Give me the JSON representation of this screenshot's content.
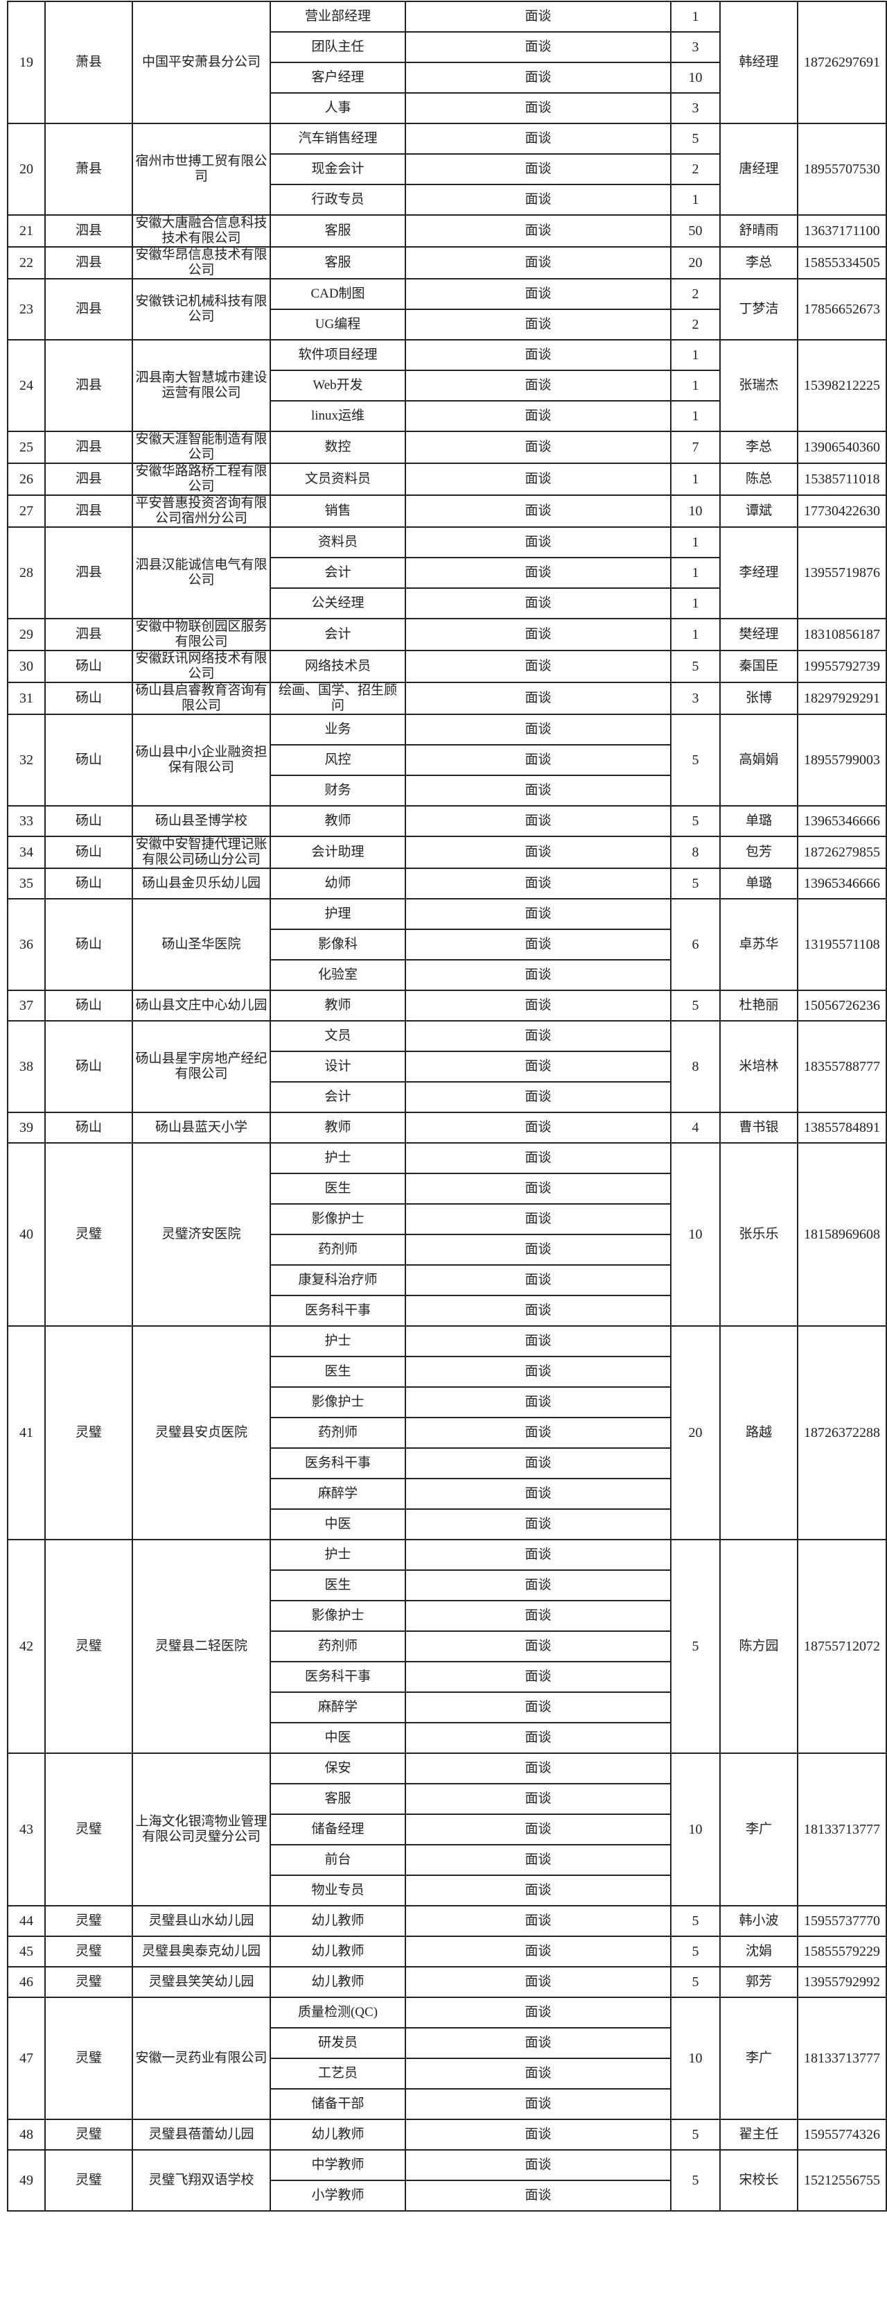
{
  "rows": [
    {
      "no": "19",
      "county": "萧县",
      "company": "中国平安萧县分公司",
      "positions": [
        {
          "title": "营业部经理",
          "method": "面谈",
          "count": "1"
        },
        {
          "title": "团队主任",
          "method": "面谈",
          "count": "3"
        },
        {
          "title": "客户经理",
          "method": "面谈",
          "count": "10"
        },
        {
          "title": "人事",
          "method": "面谈",
          "count": "3"
        }
      ],
      "contact": "韩经理",
      "phone": "18726297691"
    },
    {
      "no": "20",
      "county": "萧县",
      "company": "宿州市世搏工贸有限公司",
      "positions": [
        {
          "title": "汽车销售经理",
          "method": "面谈",
          "count": "5"
        },
        {
          "title": "现金会计",
          "method": "面谈",
          "count": "2"
        },
        {
          "title": "行政专员",
          "method": "面谈",
          "count": "1"
        }
      ],
      "contact": "唐经理",
      "phone": "18955707530"
    },
    {
      "no": "21",
      "county": "泗县",
      "company": "安徽大唐融合信息科技技术有限公司",
      "positions": [
        {
          "title": "客服",
          "method": "面谈"
        }
      ],
      "count": "50",
      "contact": "舒晴雨",
      "phone": "13637171100"
    },
    {
      "no": "22",
      "county": "泗县",
      "company": "安徽华昂信息技术有限公司",
      "positions": [
        {
          "title": "客服",
          "method": "面谈"
        }
      ],
      "count": "20",
      "contact": "李总",
      "phone": "15855334505"
    },
    {
      "no": "23",
      "county": "泗县",
      "company": "安徽铁记机械科技有限公司",
      "positions": [
        {
          "title": "CAD制图",
          "method": "面谈",
          "count": "2"
        },
        {
          "title": "UG编程",
          "method": "面谈",
          "count": "2"
        }
      ],
      "contact": "丁梦洁",
      "phone": "17856652673"
    },
    {
      "no": "24",
      "county": "泗县",
      "company": "泗县南大智慧城市建设运营有限公司",
      "positions": [
        {
          "title": "软件项目经理",
          "method": "面谈",
          "count": "1"
        },
        {
          "title": "Web开发",
          "method": "面谈",
          "count": "1"
        },
        {
          "title": "linux运维",
          "method": "面谈",
          "count": "1"
        }
      ],
      "contact": "张瑞杰",
      "phone": "15398212225"
    },
    {
      "no": "25",
      "county": "泗县",
      "company": "安徽天涯智能制造有限公司",
      "positions": [
        {
          "title": "数控",
          "method": "面谈"
        }
      ],
      "count": "7",
      "contact": "李总",
      "phone": "13906540360"
    },
    {
      "no": "26",
      "county": "泗县",
      "company": "安徽华路路桥工程有限公司",
      "positions": [
        {
          "title": "文员资料员",
          "method": "面谈"
        }
      ],
      "count": "1",
      "contact": "陈总",
      "phone": "15385711018"
    },
    {
      "no": "27",
      "county": "泗县",
      "company": "平安普惠投资咨询有限公司宿州分公司",
      "positions": [
        {
          "title": "销售",
          "method": "面谈"
        }
      ],
      "count": "10",
      "contact": "谭斌",
      "phone": "17730422630"
    },
    {
      "no": "28",
      "county": "泗县",
      "company": "泗县汉能诚信电气有限公司",
      "positions": [
        {
          "title": "资料员",
          "method": "面谈",
          "count": "1"
        },
        {
          "title": "会计",
          "method": "面谈",
          "count": "1"
        },
        {
          "title": "公关经理",
          "method": "面谈",
          "count": "1"
        }
      ],
      "contact": "李经理",
      "phone": "13955719876"
    },
    {
      "no": "29",
      "county": "泗县",
      "company": "安徽中物联创园区服务有限公司",
      "positions": [
        {
          "title": "会计",
          "method": "面谈"
        }
      ],
      "count": "1",
      "contact": "樊经理",
      "phone": "18310856187"
    },
    {
      "no": "30",
      "county": "砀山",
      "company": "安徽跃讯网络技术有限公司",
      "positions": [
        {
          "title": "网络技术员",
          "method": "面谈"
        }
      ],
      "count": "5",
      "contact": "秦国臣",
      "phone": "19955792739"
    },
    {
      "no": "31",
      "county": "砀山",
      "company": "砀山县启睿教育咨询有限公司",
      "positions": [
        {
          "title": "绘画、国学、招生顾问",
          "method": "面谈"
        }
      ],
      "count": "3",
      "contact": "张博",
      "phone": "18297929291"
    },
    {
      "no": "32",
      "county": "砀山",
      "company": "砀山县中小企业融资担保有限公司",
      "positions": [
        {
          "title": "业务",
          "method": "面谈"
        },
        {
          "title": "风控",
          "method": "面谈"
        },
        {
          "title": "财务",
          "method": "面谈"
        }
      ],
      "count": "5",
      "contact": "高娟娟",
      "phone": "18955799003"
    },
    {
      "no": "33",
      "county": "砀山",
      "company": "砀山县圣博学校",
      "positions": [
        {
          "title": "教师",
          "method": "面谈"
        }
      ],
      "count": "5",
      "contact": "单璐",
      "phone": "13965346666"
    },
    {
      "no": "34",
      "county": "砀山",
      "company": "安徽中安智捷代理记账有限公司砀山分公司",
      "positions": [
        {
          "title": "会计助理",
          "method": "面谈"
        }
      ],
      "count": "8",
      "contact": "包芳",
      "phone": "18726279855"
    },
    {
      "no": "35",
      "county": "砀山",
      "company": "砀山县金贝乐幼儿园",
      "positions": [
        {
          "title": "幼师",
          "method": "面谈"
        }
      ],
      "count": "5",
      "contact": "单璐",
      "phone": "13965346666"
    },
    {
      "no": "36",
      "county": "砀山",
      "company": "砀山圣华医院",
      "positions": [
        {
          "title": "护理",
          "method": "面谈"
        },
        {
          "title": "影像科",
          "method": "面谈"
        },
        {
          "title": "化验室",
          "method": "面谈"
        }
      ],
      "count": "6",
      "contact": "卓苏华",
      "phone": "13195571108"
    },
    {
      "no": "37",
      "county": "砀山",
      "company": "砀山县文庄中心幼儿园",
      "positions": [
        {
          "title": "教师",
          "method": "面谈"
        }
      ],
      "count": "5",
      "contact": "杜艳丽",
      "phone": "15056726236"
    },
    {
      "no": "38",
      "county": "砀山",
      "company": "砀山县星宇房地产经纪有限公司",
      "positions": [
        {
          "title": "文员",
          "method": "面谈"
        },
        {
          "title": "设计",
          "method": "面谈"
        },
        {
          "title": "会计",
          "method": "面谈"
        }
      ],
      "count": "8",
      "contact": "米培林",
      "phone": "18355788777"
    },
    {
      "no": "39",
      "county": "砀山",
      "company": "砀山县蓝天小学",
      "positions": [
        {
          "title": "教师",
          "method": "面谈"
        }
      ],
      "count": "4",
      "contact": "曹书银",
      "phone": "13855784891"
    },
    {
      "no": "40",
      "county": "灵璧",
      "company": "灵璧济安医院",
      "positions": [
        {
          "title": "护士",
          "method": "面谈"
        },
        {
          "title": "医生",
          "method": "面谈"
        },
        {
          "title": "影像护士",
          "method": "面谈"
        },
        {
          "title": "药剂师",
          "method": "面谈"
        },
        {
          "title": "康复科治疗师",
          "method": "面谈"
        },
        {
          "title": "医务科干事",
          "method": "面谈"
        }
      ],
      "count": "10",
      "contact": "张乐乐",
      "phone": "18158969608"
    },
    {
      "no": "41",
      "county": "灵璧",
      "company": "灵璧县安贞医院",
      "positions": [
        {
          "title": "护士",
          "method": "面谈"
        },
        {
          "title": "医生",
          "method": "面谈"
        },
        {
          "title": "影像护士",
          "method": "面谈"
        },
        {
          "title": "药剂师",
          "method": "面谈"
        },
        {
          "title": "医务科干事",
          "method": "面谈"
        },
        {
          "title": "麻醉学",
          "method": "面谈"
        },
        {
          "title": "中医",
          "method": "面谈"
        }
      ],
      "count": "20",
      "contact": "路越",
      "phone": "18726372288"
    },
    {
      "no": "42",
      "county": "灵璧",
      "company": "灵璧县二轻医院",
      "positions": [
        {
          "title": "护士",
          "method": "面谈"
        },
        {
          "title": "医生",
          "method": "面谈"
        },
        {
          "title": "影像护士",
          "method": "面谈"
        },
        {
          "title": "药剂师",
          "method": "面谈"
        },
        {
          "title": "医务科干事",
          "method": "面谈"
        },
        {
          "title": "麻醉学",
          "method": "面谈"
        },
        {
          "title": "中医",
          "method": "面谈"
        }
      ],
      "count": "5",
      "contact": "陈方园",
      "phone": "18755712072"
    },
    {
      "no": "43",
      "county": "灵璧",
      "company": "上海文化银湾物业管理有限公司灵璧分公司",
      "positions": [
        {
          "title": "保安",
          "method": "面谈"
        },
        {
          "title": "客服",
          "method": "面谈"
        },
        {
          "title": "储备经理",
          "method": "面谈"
        },
        {
          "title": "前台",
          "method": "面谈"
        },
        {
          "title": "物业专员",
          "method": "面谈"
        }
      ],
      "count": "10",
      "contact": "李广",
      "phone": "18133713777"
    },
    {
      "no": "44",
      "county": "灵璧",
      "company": "灵璧县山水幼儿园",
      "positions": [
        {
          "title": "幼儿教师",
          "method": "面谈"
        }
      ],
      "count": "5",
      "contact": "韩小波",
      "phone": "15955737770"
    },
    {
      "no": "45",
      "county": "灵璧",
      "company": "灵璧县奥泰克幼儿园",
      "positions": [
        {
          "title": "幼儿教师",
          "method": "面谈"
        }
      ],
      "count": "5",
      "contact": "沈娟",
      "phone": "15855579229"
    },
    {
      "no": "46",
      "county": "灵璧",
      "company": "灵璧县笑笑幼儿园",
      "positions": [
        {
          "title": "幼儿教师",
          "method": "面谈"
        }
      ],
      "count": "5",
      "contact": "郭芳",
      "phone": "13955792992"
    },
    {
      "no": "47",
      "county": "灵璧",
      "company": "安徽一灵药业有限公司",
      "positions": [
        {
          "title": "质量检测(QC)",
          "method": "面谈"
        },
        {
          "title": "研发员",
          "method": "面谈"
        },
        {
          "title": "工艺员",
          "method": "面谈"
        },
        {
          "title": "储备干部",
          "method": "面谈"
        }
      ],
      "count": "10",
      "contact": "李广",
      "phone": "18133713777"
    },
    {
      "no": "48",
      "county": "灵璧",
      "company": "灵璧县蓓蕾幼儿园",
      "positions": [
        {
          "title": "幼儿教师",
          "method": "面谈"
        }
      ],
      "count": "5",
      "contact": "翟主任",
      "phone": "15955774326"
    },
    {
      "no": "49",
      "county": "灵璧",
      "company": "灵璧飞翔双语学校",
      "positions": [
        {
          "title": "中学教师",
          "method": "面谈"
        },
        {
          "title": "小学教师",
          "method": "面谈"
        }
      ],
      "count": "5",
      "contact": "宋校长",
      "phone": "15212556755"
    }
  ]
}
